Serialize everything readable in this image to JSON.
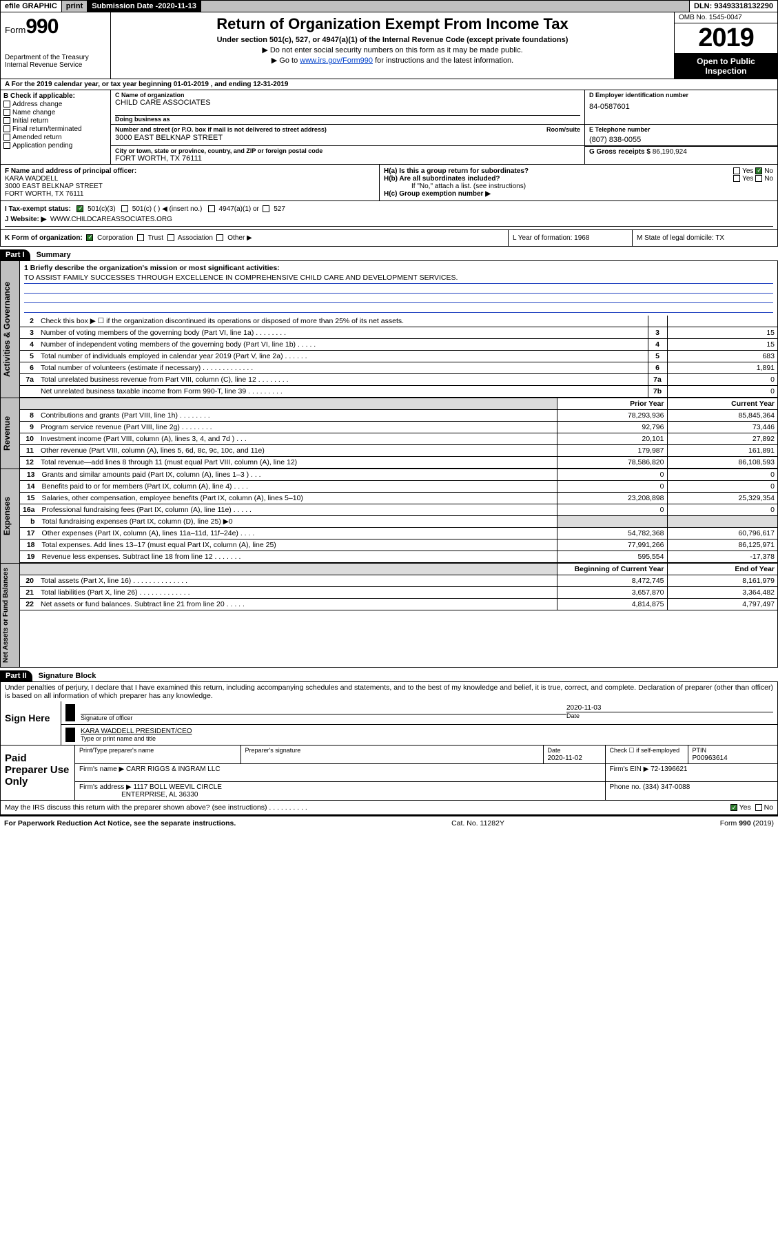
{
  "topbar": {
    "efile": "efile GRAPHIC",
    "print": "print",
    "subdate_label": "Submission Date - ",
    "subdate": "2020-11-13",
    "dln": "DLN: 93493318132290"
  },
  "header": {
    "form_label": "Form",
    "form_num": "990",
    "dept": "Department of the Treasury\nInternal Revenue Service",
    "title": "Return of Organization Exempt From Income Tax",
    "subtitle": "Under section 501(c), 527, or 4947(a)(1) of the Internal Revenue Code (except private foundations)",
    "instr1": "Do not enter social security numbers on this form as it may be made public.",
    "instr2_pre": "Go to ",
    "instr2_link": "www.irs.gov/Form990",
    "instr2_post": " for instructions and the latest information.",
    "omb": "OMB No. 1545-0047",
    "year": "2019",
    "inspect": "Open to Public Inspection"
  },
  "rowA": "A For the 2019 calendar year, or tax year beginning 01-01-2019   , and ending 12-31-2019",
  "colB": {
    "head": "B Check if applicable:",
    "items": [
      "Address change",
      "Name change",
      "Initial return",
      "Final return/terminated",
      "Amended return",
      "Application pending"
    ]
  },
  "orgC": {
    "label": "C Name of organization",
    "name": "CHILD CARE ASSOCIATES",
    "dba_label": "Doing business as",
    "addr_label": "Number and street (or P.O. box if mail is not delivered to street address)",
    "room_label": "Room/suite",
    "addr": "3000 EAST BELKNAP STREET",
    "city_label": "City or town, state or province, country, and ZIP or foreign postal code",
    "city": "FORT WORTH, TX  76111"
  },
  "boxD": {
    "label": "D Employer identification number",
    "val": "84-0587601"
  },
  "boxE": {
    "label": "E Telephone number",
    "val": "(807) 838-0055"
  },
  "boxG": {
    "label": "G Gross receipts $",
    "val": "86,190,924"
  },
  "rowF": {
    "label": "F Name and address of principal officer:",
    "name": "KARA WADDELL",
    "addr1": "3000 EAST BELKNAP STREET",
    "addr2": "FORT WORTH, TX  76111"
  },
  "rowH": {
    "a": "H(a)  Is this a group return for subordinates?",
    "a_yes": "Yes",
    "a_no": "No",
    "b": "H(b)  Are all subordinates included?",
    "b_yes": "Yes",
    "b_no": "No",
    "b_note": "If \"No,\" attach a list. (see instructions)",
    "c": "H(c)  Group exemption number ▶"
  },
  "rowI": {
    "label": "I    Tax-exempt status:",
    "c3": "501(c)(3)",
    "c": "501(c) (  ) ◀ (insert no.)",
    "a1": "4947(a)(1) or",
    "s527": "527"
  },
  "rowJ": {
    "label": "J   Website: ▶",
    "val": "WWW.CHILDCAREASSOCIATES.ORG"
  },
  "rowK": {
    "left_label": "K Form of organization:",
    "corp": "Corporation",
    "trust": "Trust",
    "assoc": "Association",
    "other": "Other ▶",
    "L": "L Year of formation: 1968",
    "M": "M State of legal domicile: TX"
  },
  "part1": {
    "header": "Part I",
    "title": "Summary"
  },
  "mission": {
    "q1": "1  Briefly describe the organization's mission or most significant activities:",
    "text": "TO ASSIST FAMILY SUCCESSES THROUGH EXCELLENCE IN COMPREHENSIVE CHILD CARE AND DEVELOPMENT SERVICES."
  },
  "lines_gov": [
    {
      "n": "2",
      "desc": "Check this box ▶ ☐  if the organization discontinued its operations or disposed of more than 25% of its net assets.",
      "box": "",
      "val": ""
    },
    {
      "n": "3",
      "desc": "Number of voting members of the governing body (Part VI, line 1a)   .    .    .    .    .    .    .    .",
      "box": "3",
      "val": "15"
    },
    {
      "n": "4",
      "desc": "Number of independent voting members of the governing body (Part VI, line 1b)   .    .    .    .    .",
      "box": "4",
      "val": "15"
    },
    {
      "n": "5",
      "desc": "Total number of individuals employed in calendar year 2019 (Part V, line 2a)   .    .    .    .    .    .",
      "box": "5",
      "val": "683"
    },
    {
      "n": "6",
      "desc": "Total number of volunteers (estimate if necessary)   .    .    .    .    .    .    .    .    .    .    .    .    .",
      "box": "6",
      "val": "1,891"
    },
    {
      "n": "7a",
      "desc": "Total unrelated business revenue from Part VIII, column (C), line 12   .    .    .    .    .    .    .    .",
      "box": "7a",
      "val": "0"
    },
    {
      "n": "",
      "desc": "Net unrelated business taxable income from Form 990-T, line 39   .    .    .    .    .    .    .    .    .",
      "box": "7b",
      "val": "0"
    }
  ],
  "col_headers": {
    "prior": "Prior Year",
    "curr": "Current Year"
  },
  "lines_rev": [
    {
      "n": "8",
      "desc": "Contributions and grants (Part VIII, line 1h)   .    .    .    .    .    .    .    .",
      "prior": "78,293,936",
      "curr": "85,845,364"
    },
    {
      "n": "9",
      "desc": "Program service revenue (Part VIII, line 2g)   .    .    .    .    .    .    .    .",
      "prior": "92,796",
      "curr": "73,446"
    },
    {
      "n": "10",
      "desc": "Investment income (Part VIII, column (A), lines 3, 4, and 7d )   .    .    .",
      "prior": "20,101",
      "curr": "27,892"
    },
    {
      "n": "11",
      "desc": "Other revenue (Part VIII, column (A), lines 5, 6d, 8c, 9c, 10c, and 11e)",
      "prior": "179,987",
      "curr": "161,891"
    },
    {
      "n": "12",
      "desc": "Total revenue—add lines 8 through 11 (must equal Part VIII, column (A), line 12)",
      "prior": "78,586,820",
      "curr": "86,108,593"
    }
  ],
  "lines_exp": [
    {
      "n": "13",
      "desc": "Grants and similar amounts paid (Part IX, column (A), lines 1–3 )   .    .    .",
      "prior": "0",
      "curr": "0"
    },
    {
      "n": "14",
      "desc": "Benefits paid to or for members (Part IX, column (A), line 4)   .    .    .    .",
      "prior": "0",
      "curr": "0"
    },
    {
      "n": "15",
      "desc": "Salaries, other compensation, employee benefits (Part IX, column (A), lines 5–10)",
      "prior": "23,208,898",
      "curr": "25,329,354"
    },
    {
      "n": "16a",
      "desc": "Professional fundraising fees (Part IX, column (A), line 11e)   .    .    .    .    .",
      "prior": "0",
      "curr": "0"
    },
    {
      "n": "b",
      "desc": "Total fundraising expenses (Part IX, column (D), line 25) ▶0",
      "prior": "",
      "curr": "",
      "grey": true
    },
    {
      "n": "17",
      "desc": "Other expenses (Part IX, column (A), lines 11a–11d, 11f–24e)   .    .    .    .",
      "prior": "54,782,368",
      "curr": "60,796,617"
    },
    {
      "n": "18",
      "desc": "Total expenses. Add lines 13–17 (must equal Part IX, column (A), line 25)",
      "prior": "77,991,266",
      "curr": "86,125,971"
    },
    {
      "n": "19",
      "desc": "Revenue less expenses. Subtract line 18 from line 12   .    .    .    .    .    .    .",
      "prior": "595,554",
      "curr": "-17,378"
    }
  ],
  "col_headers2": {
    "prior": "Beginning of Current Year",
    "curr": "End of Year"
  },
  "lines_net": [
    {
      "n": "20",
      "desc": "Total assets (Part X, line 16)   .    .    .    .    .    .    .    .    .    .    .    .    .    .",
      "prior": "8,472,745",
      "curr": "8,161,979"
    },
    {
      "n": "21",
      "desc": "Total liabilities (Part X, line 26)   .    .    .    .    .    .    .    .    .    .    .    .    .",
      "prior": "3,657,870",
      "curr": "3,364,482"
    },
    {
      "n": "22",
      "desc": "Net assets or fund balances. Subtract line 21 from line 20   .    .    .    .    .",
      "prior": "4,814,875",
      "curr": "4,797,497"
    }
  ],
  "part2": {
    "header": "Part II",
    "title": "Signature Block"
  },
  "penalty": "Under penalties of perjury, I declare that I have examined this return, including accompanying schedules and statements, and to the best of my knowledge and belief, it is true, correct, and complete. Declaration of preparer (other than officer) is based on all information of which preparer has any knowledge.",
  "sign": {
    "here": "Sign Here",
    "sig_label": "Signature of officer",
    "date": "2020-11-03",
    "date_label": "Date",
    "name": "KARA WADDELL  PRESIDENT/CEO",
    "name_label": "Type or print name and title"
  },
  "paid": {
    "label": "Paid Preparer Use Only",
    "prep_name_label": "Print/Type preparer's name",
    "prep_sig_label": "Preparer's signature",
    "date_label": "Date",
    "date": "2020-11-02",
    "check_label": "Check ☐ if self-employed",
    "ptin_label": "PTIN",
    "ptin": "P00963614",
    "firm_name_label": "Firm's name    ▶",
    "firm_name": "CARR RIGGS & INGRAM LLC",
    "firm_ein_label": "Firm's EIN ▶",
    "firm_ein": "72-1396621",
    "firm_addr_label": "Firm's address ▶",
    "firm_addr1": "1117 BOLL WEEVIL CIRCLE",
    "firm_addr2": "ENTERPRISE, AL  36330",
    "phone_label": "Phone no.",
    "phone": "(334) 347-0088"
  },
  "discuss": {
    "q": "May the IRS discuss this return with the preparer shown above? (see instructions)   .    .    .    .    .    .    .    .    .    .",
    "yes": "Yes",
    "no": "No"
  },
  "footer": {
    "left": "For Paperwork Reduction Act Notice, see the separate instructions.",
    "mid": "Cat. No. 11282Y",
    "right": "Form 990 (2019)"
  },
  "vtabs": {
    "gov": "Activities & Governance",
    "rev": "Revenue",
    "exp": "Expenses",
    "net": "Net Assets or Fund Balances"
  }
}
